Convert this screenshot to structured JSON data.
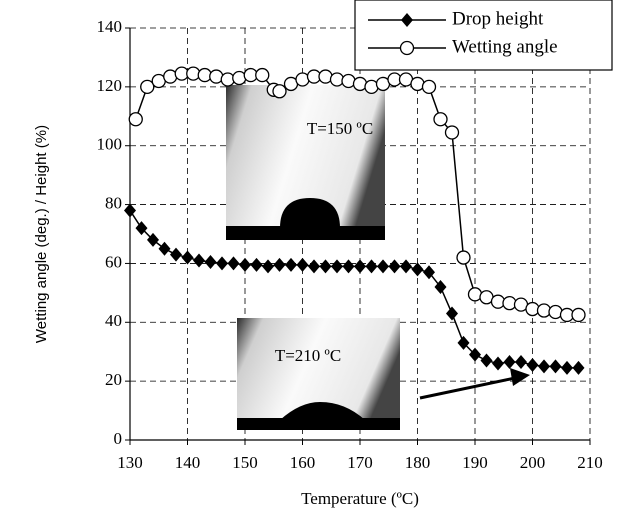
{
  "chart_data": {
    "type": "line",
    "xlabel": "Temperature (ºC)",
    "ylabel": "Wetting angle (deg.) / Height (%)",
    "xlim": [
      130,
      210
    ],
    "xticks": [
      130,
      140,
      150,
      160,
      170,
      180,
      190,
      200,
      210
    ],
    "ylim": [
      0,
      140
    ],
    "yticks": [
      0,
      20,
      40,
      60,
      80,
      100,
      120,
      140
    ],
    "grid": true,
    "legend": "upper right",
    "annotations": [
      "T=150 ºC",
      "T=210 ºC"
    ],
    "series": [
      {
        "name": "Drop height",
        "color": "#000000",
        "marker": "diamond",
        "x": [
          130,
          132,
          134,
          136,
          138,
          140,
          142,
          144,
          146,
          148,
          150,
          152,
          154,
          156,
          158,
          160,
          162,
          164,
          166,
          168,
          170,
          172,
          174,
          176,
          178,
          180,
          182,
          184,
          186,
          188,
          190,
          192,
          194,
          196,
          198,
          200,
          202,
          204,
          206,
          208
        ],
        "values": [
          78,
          72,
          68,
          65,
          63,
          62,
          61,
          60.5,
          60,
          60,
          59.5,
          59.5,
          59,
          59.5,
          59.5,
          59.5,
          59,
          59,
          59,
          59,
          59,
          59,
          59,
          59,
          59,
          58,
          57,
          52,
          43,
          33,
          29,
          27,
          26,
          26.5,
          26.5,
          25.5,
          25,
          25,
          24.5,
          24.5
        ]
      },
      {
        "name": "Wetting angle",
        "color": "#000000",
        "marker": "circle",
        "x": [
          131,
          133,
          135,
          137,
          139,
          141,
          143,
          145,
          147,
          149,
          151,
          153,
          155,
          156,
          158,
          160,
          162,
          164,
          166,
          168,
          170,
          172,
          174,
          176,
          178,
          180,
          182,
          184,
          186,
          188,
          190,
          192,
          194,
          196,
          198,
          200,
          202,
          204,
          206,
          208
        ],
        "values": [
          109,
          120,
          122,
          123.5,
          124.5,
          124.5,
          124,
          123.5,
          122.5,
          123,
          124,
          124,
          119,
          118.5,
          121,
          122.5,
          123.5,
          123.5,
          122.5,
          122,
          121,
          120,
          121,
          122.5,
          122.5,
          121,
          120,
          109,
          104.5,
          62,
          49.5,
          48.5,
          47,
          46.5,
          46,
          44.5,
          44,
          43.5,
          42.5,
          42.5
        ]
      }
    ]
  }
}
